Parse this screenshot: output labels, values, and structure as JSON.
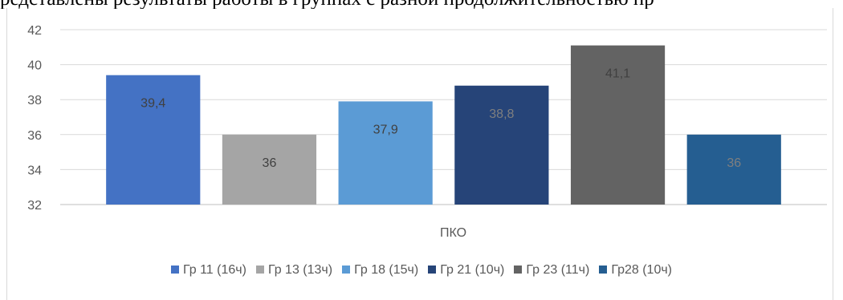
{
  "cut_text": "редставлены результаты работы в группах с разной продолжительностью пр",
  "chart_data": {
    "type": "bar",
    "categories": [
      "ПКО"
    ],
    "series": [
      {
        "name": "Гр 11 (16ч)",
        "values": [
          39.4
        ],
        "label": "39,4",
        "color": "#4472c4"
      },
      {
        "name": "Гр 13 (13ч)",
        "values": [
          36
        ],
        "label": "36",
        "color": "#a5a5a5"
      },
      {
        "name": "Гр 18 (15ч)",
        "values": [
          37.9
        ],
        "label": "37,9",
        "color": "#5b9bd5"
      },
      {
        "name": "Гр 21 (10ч)",
        "values": [
          38.8
        ],
        "label": "38,8",
        "color": "#264478"
      },
      {
        "name": "Гр 23 (11ч)",
        "values": [
          41.1
        ],
        "label": "41,1",
        "color": "#636363"
      },
      {
        "name": "Гр28 (10ч)",
        "values": [
          36
        ],
        "label": "36",
        "color": "#255e91"
      }
    ],
    "yticks": [
      "32",
      "34",
      "36",
      "38",
      "40",
      "42"
    ],
    "ylim": [
      32,
      42
    ],
    "grid": true,
    "legend": "bottom"
  }
}
